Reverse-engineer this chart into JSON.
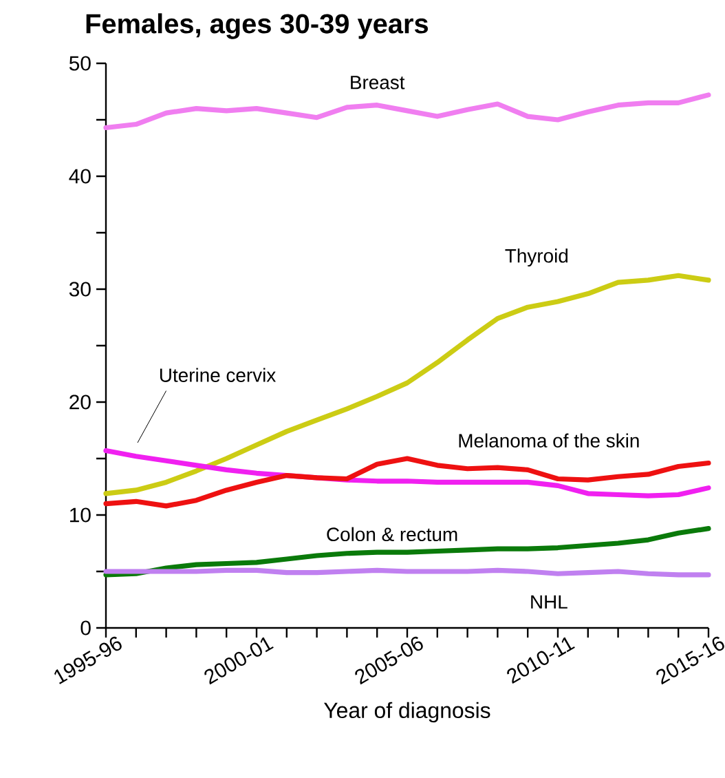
{
  "chart_data": {
    "type": "line",
    "title": "Females, ages 30-39 years",
    "xlabel": "Year of diagnosis",
    "categories": [
      "1995-96",
      null,
      null,
      null,
      null,
      "2000-01",
      null,
      null,
      null,
      null,
      "2005-06",
      null,
      null,
      null,
      null,
      "2010-11",
      null,
      null,
      null,
      null,
      "2015-16"
    ],
    "ylim": [
      0,
      50
    ],
    "yticks": [
      0,
      {
        "value": 5,
        "label": null
      },
      10,
      {
        "value": 15,
        "label": null
      },
      20,
      {
        "value": 25,
        "label": null
      },
      30,
      {
        "value": 35,
        "label": null
      },
      40,
      {
        "value": 45,
        "label": null
      },
      50
    ],
    "line_style": "solid",
    "marker": "none",
    "legend": false,
    "grid": false,
    "series": [
      {
        "name": "Breast",
        "color": "#f07ef0",
        "values": [
          44.3,
          44.6,
          45.6,
          46.0,
          45.8,
          46.0,
          45.6,
          45.2,
          46.1,
          46.3,
          45.8,
          45.3,
          45.9,
          46.4,
          45.3,
          45.0,
          45.7,
          46.3,
          46.5,
          46.5,
          47.2
        ]
      },
      {
        "name": "Thyroid",
        "color": "#cccc14",
        "values": [
          11.9,
          12.2,
          12.9,
          13.9,
          15.0,
          16.2,
          17.4,
          18.4,
          19.4,
          20.5,
          21.7,
          23.5,
          25.5,
          27.4,
          28.4,
          28.9,
          29.6,
          30.6,
          30.8,
          31.2,
          30.8
        ]
      },
      {
        "name": "Uterine cervix",
        "color": "#f020f0",
        "values": [
          15.7,
          15.2,
          14.8,
          14.4,
          14.0,
          13.7,
          13.5,
          13.3,
          13.1,
          13.0,
          13.0,
          12.9,
          12.9,
          12.9,
          12.9,
          12.6,
          11.9,
          11.8,
          11.7,
          11.8,
          12.4
        ]
      },
      {
        "name": "Melanoma of the skin",
        "color": "#ee1111",
        "values": [
          11.0,
          11.2,
          10.8,
          11.3,
          12.2,
          12.9,
          13.5,
          13.3,
          13.2,
          14.5,
          15.0,
          14.4,
          14.1,
          14.2,
          14.0,
          13.2,
          13.1,
          13.4,
          13.6,
          14.3,
          14.6
        ]
      },
      {
        "name": "Colon & rectum",
        "color": "#0a7a0a",
        "values": [
          4.7,
          4.8,
          5.3,
          5.6,
          5.7,
          5.8,
          6.1,
          6.4,
          6.6,
          6.7,
          6.7,
          6.8,
          6.9,
          7.0,
          7.0,
          7.1,
          7.3,
          7.5,
          7.8,
          8.4,
          8.8
        ]
      },
      {
        "name": "NHL",
        "color": "#c080f0",
        "values": [
          5.0,
          5.0,
          5.0,
          5.0,
          5.1,
          5.1,
          4.9,
          4.9,
          5.0,
          5.1,
          5.0,
          5.0,
          5.0,
          5.1,
          5.0,
          4.8,
          4.9,
          5.0,
          4.8,
          4.7,
          4.7
        ]
      }
    ]
  }
}
